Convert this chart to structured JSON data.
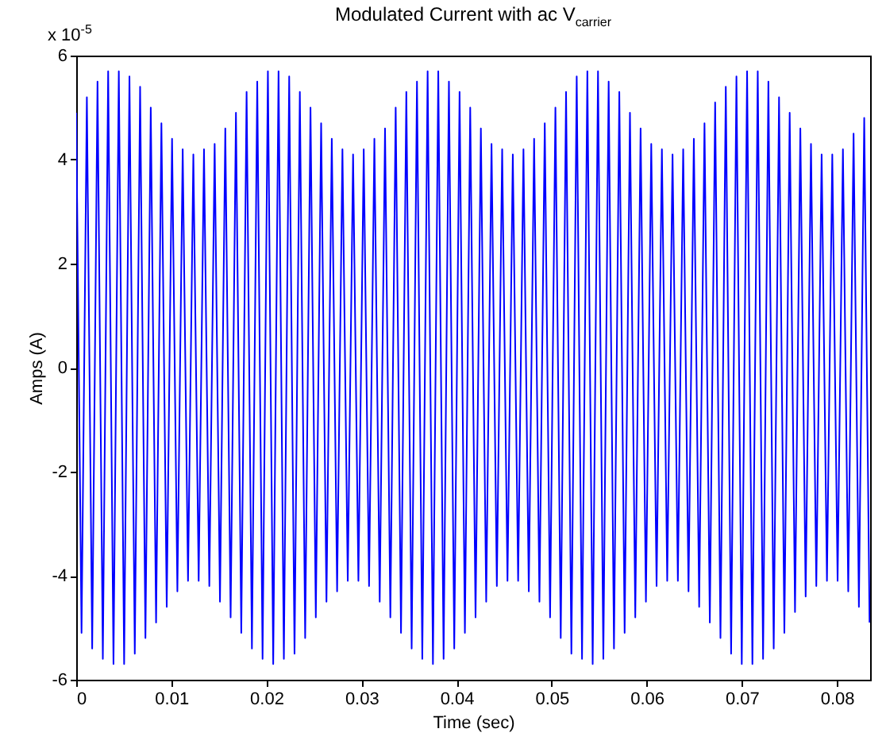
{
  "chart_data": {
    "type": "line",
    "title": "Modulated Current with ac V$_{carrier}$",
    "xlabel": "Time (sec)",
    "ylabel": "Amps (A)",
    "annotations": [
      "x 10$^{-5}$"
    ],
    "xlim": [
      0,
      0.0835
    ],
    "xticks": [
      0,
      0.01,
      0.02,
      0.03,
      0.04,
      0.05,
      0.06,
      0.07,
      0.08
    ],
    "ylim": [
      -6,
      6
    ],
    "yticks": [
      -6,
      -4,
      -2,
      0,
      2,
      4,
      6
    ],
    "grid": false,
    "marker": "none",
    "line_style": "solid",
    "x": [
      0,
      0.00056,
      0.00112,
      0.00168,
      0.00224,
      0.0028,
      0.00336,
      0.00392,
      0.00448,
      0.00504,
      0.0056,
      0.00616,
      0.00672,
      0.00728,
      0.00784,
      0.0084,
      0.00896,
      0.00952,
      0.01008,
      0.01064,
      0.0112,
      0.01176,
      0.01232,
      0.01288,
      0.01344,
      0.014,
      0.01456,
      0.01512,
      0.01568,
      0.01624,
      0.0168,
      0.01736,
      0.01792,
      0.01848,
      0.01904,
      0.0196,
      0.02016,
      0.02072,
      0.02128,
      0.02184,
      0.0224,
      0.02296,
      0.02352,
      0.02408,
      0.02464,
      0.0252,
      0.02576,
      0.02632,
      0.02688,
      0.02744,
      0.028,
      0.02856,
      0.02912,
      0.02968,
      0.03024,
      0.0308,
      0.03136,
      0.03192,
      0.03248,
      0.03304,
      0.0336,
      0.03416,
      0.03472,
      0.03528,
      0.03584,
      0.0364,
      0.03696,
      0.03752,
      0.03808,
      0.03864,
      0.0392,
      0.03976,
      0.04032,
      0.04088,
      0.04144,
      0.042,
      0.04256,
      0.04312,
      0.04368,
      0.04424,
      0.0448,
      0.04536,
      0.04592,
      0.04648,
      0.04704,
      0.0476,
      0.04816,
      0.04872,
      0.04928,
      0.04984,
      0.0504,
      0.05096,
      0.05152,
      0.05208,
      0.05264,
      0.0532,
      0.05376,
      0.05432,
      0.05488,
      0.05544,
      0.056,
      0.05656,
      0.05712,
      0.05768,
      0.05824,
      0.0588,
      0.05936,
      0.05992,
      0.06048,
      0.06104,
      0.0616,
      0.06216,
      0.06272,
      0.06328,
      0.06384,
      0.0644,
      0.06496,
      0.06552,
      0.06608,
      0.06664,
      0.0672,
      0.06776,
      0.06832,
      0.06888,
      0.06944,
      0.07,
      0.07056,
      0.07112,
      0.07168,
      0.07224,
      0.0728,
      0.07336,
      0.07392,
      0.07448,
      0.07504,
      0.0756,
      0.07616,
      0.07672,
      0.07728,
      0.07784,
      0.0784,
      0.07896,
      0.07952,
      0.08008,
      0.08064,
      0.0812,
      0.08176,
      0.08232,
      0.08288,
      0.08344
    ],
    "series": [
      {
        "color": "#0000ff",
        "values": [
          4.9,
          -5.1,
          5.2,
          -5.4,
          5.5,
          -5.6,
          5.7,
          -5.7,
          5.7,
          -5.7,
          5.6,
          -5.5,
          5.4,
          -5.2,
          5.0,
          -4.9,
          4.7,
          -4.6,
          4.4,
          -4.3,
          4.2,
          -4.1,
          4.1,
          -4.1,
          4.2,
          -4.2,
          4.3,
          -4.5,
          4.6,
          -4.8,
          4.9,
          -5.1,
          5.3,
          -5.4,
          5.5,
          -5.6,
          5.7,
          -5.7,
          5.7,
          -5.6,
          5.6,
          -5.5,
          5.3,
          -5.2,
          5.0,
          -4.8,
          4.7,
          -4.5,
          4.4,
          -4.3,
          4.2,
          -4.1,
          4.1,
          -4.1,
          4.2,
          -4.2,
          4.4,
          -4.5,
          4.6,
          -4.8,
          5.0,
          -5.1,
          5.3,
          -5.4,
          5.5,
          -5.6,
          5.7,
          -5.7,
          5.7,
          -5.6,
          5.5,
          -5.4,
          5.3,
          -5.1,
          5.0,
          -4.8,
          4.6,
          -4.5,
          4.3,
          -4.2,
          4.2,
          -4.1,
          4.1,
          -4.1,
          4.2,
          -4.3,
          4.4,
          -4.5,
          4.7,
          -4.8,
          5.0,
          -5.2,
          5.3,
          -5.5,
          5.6,
          -5.6,
          5.7,
          -5.7,
          5.7,
          -5.6,
          5.5,
          -5.4,
          5.3,
          -5.1,
          4.9,
          -4.8,
          4.6,
          -4.5,
          4.3,
          -4.2,
          4.2,
          -4.1,
          4.1,
          -4.1,
          4.2,
          -4.3,
          4.4,
          -4.6,
          4.7,
          -4.9,
          5.1,
          -5.2,
          5.4,
          -5.5,
          5.6,
          -5.7,
          5.7,
          -5.7,
          5.7,
          -5.6,
          5.5,
          -5.4,
          5.2,
          -5.1,
          4.9,
          -4.7,
          4.6,
          -4.4,
          4.3,
          -4.2,
          4.1,
          -4.1,
          4.1,
          -4.1,
          4.2,
          -4.3,
          4.5,
          -4.6,
          4.8,
          -4.9
        ]
      }
    ]
  }
}
